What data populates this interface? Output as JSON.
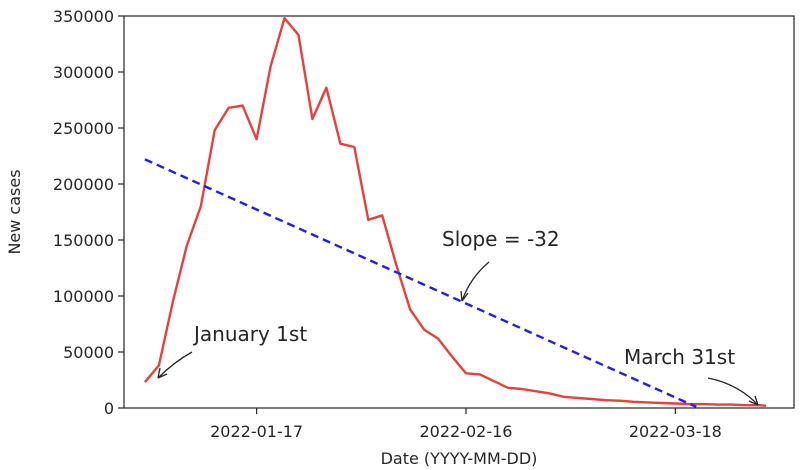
{
  "chart_data": {
    "type": "line",
    "xlabel": "Date (YYYY-MM-DD)",
    "ylabel": "New cases",
    "xlim": [
      "2021-12-29",
      "2022-04-04"
    ],
    "ylim": [
      0,
      350000
    ],
    "grid": false,
    "xticks": [
      "2022-01-17",
      "2022-02-16",
      "2022-03-18"
    ],
    "yticks": [
      0,
      50000,
      100000,
      150000,
      200000,
      250000,
      300000,
      350000
    ],
    "colors": {
      "cases": "#e8403b",
      "trend": "#1f1ff5",
      "text": "#262626"
    },
    "series": [
      {
        "x": [
          "2022-01-01",
          "2022-01-03",
          "2022-01-05",
          "2022-01-07",
          "2022-01-09",
          "2022-01-11",
          "2022-01-13",
          "2022-01-15",
          "2022-01-17",
          "2022-01-19",
          "2022-01-21",
          "2022-01-23",
          "2022-01-25",
          "2022-01-27",
          "2022-01-29",
          "2022-01-31",
          "2022-02-02",
          "2022-02-04",
          "2022-02-06",
          "2022-02-08",
          "2022-02-10",
          "2022-02-12",
          "2022-02-14",
          "2022-02-16",
          "2022-02-18",
          "2022-02-20",
          "2022-02-22",
          "2022-02-24",
          "2022-02-26",
          "2022-02-28",
          "2022-03-02",
          "2022-03-04",
          "2022-03-06",
          "2022-03-08",
          "2022-03-10",
          "2022-03-12",
          "2022-03-14",
          "2022-03-16",
          "2022-03-18",
          "2022-03-20",
          "2022-03-22",
          "2022-03-24",
          "2022-03-26",
          "2022-03-28",
          "2022-03-30",
          "2022-03-31"
        ],
        "values": [
          23000,
          38000,
          95000,
          145000,
          180000,
          248000,
          268000,
          270000,
          240000,
          305000,
          348000,
          333000,
          258000,
          286000,
          236000,
          233000,
          168000,
          172000,
          128000,
          88000,
          70000,
          62000,
          46000,
          31000,
          30000,
          24000,
          18000,
          17000,
          15000,
          13000,
          10000,
          9000,
          8000,
          7000,
          6500,
          5500,
          5000,
          4500,
          4000,
          3500,
          3500,
          3000,
          3000,
          2500,
          2500,
          2000
        ]
      },
      {
        "x": [
          "2022-01-01",
          "2022-03-21"
        ],
        "values": [
          222000,
          1000
        ]
      }
    ],
    "annotations": [
      {
        "text": "January 1st",
        "x": "2022-01-01",
        "y": 23000
      },
      {
        "text": "Slope = -32",
        "x": "2022-02-16",
        "y": 90000
      },
      {
        "text": "March 31st",
        "x": "2022-03-31",
        "y": 2000
      }
    ]
  }
}
